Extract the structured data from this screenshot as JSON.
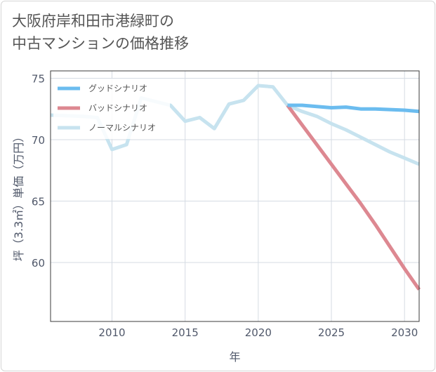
{
  "title_line1": "大阪府岸和田市港緑町の",
  "title_line2": "中古マンションの価格推移",
  "chart_data": {
    "type": "line",
    "title": "大阪府岸和田市港緑町の中古マンションの価格推移",
    "xlabel": "年",
    "ylabel": "坪（3.3㎡）単価（万円）",
    "xlim": [
      2005.8,
      2031
    ],
    "ylim": [
      55.2,
      75.6
    ],
    "xticks": [
      2010,
      2015,
      2020,
      2025,
      2030
    ],
    "yticks": [
      60,
      65,
      70,
      75
    ],
    "grid": true,
    "legend_position": "top-left",
    "series": [
      {
        "name": "グッドシナリオ",
        "color": "#6bbcef",
        "x": [
          2022,
          2023,
          2024,
          2025,
          2026,
          2027,
          2028,
          2029,
          2030,
          2031
        ],
        "values": [
          72.8,
          72.8,
          72.7,
          72.6,
          72.65,
          72.5,
          72.5,
          72.45,
          72.4,
          72.3
        ]
      },
      {
        "name": "バッドシナリオ",
        "color": "#dd8891",
        "x": [
          2022,
          2023,
          2024,
          2025,
          2026,
          2027,
          2028,
          2029,
          2030,
          2031
        ],
        "values": [
          72.8,
          71.2,
          69.6,
          68.0,
          66.4,
          64.8,
          63.1,
          61.3,
          59.5,
          57.8
        ]
      },
      {
        "name": "ノーマルシナリオ",
        "color": "#c7e3ef",
        "x": [
          2005.8,
          2008,
          2009,
          2010,
          2011,
          2012,
          2013,
          2014,
          2015,
          2016,
          2017,
          2018,
          2019,
          2020,
          2021,
          2022,
          2023,
          2024,
          2025,
          2026,
          2027,
          2028,
          2029,
          2030,
          2031
        ],
        "values": [
          72.0,
          71.9,
          71.8,
          69.2,
          69.6,
          73.4,
          73.1,
          72.8,
          71.5,
          71.8,
          70.9,
          72.9,
          73.2,
          74.4,
          74.3,
          72.8,
          72.3,
          71.9,
          71.3,
          70.8,
          70.2,
          69.6,
          69.0,
          68.5,
          68.0
        ]
      }
    ]
  }
}
